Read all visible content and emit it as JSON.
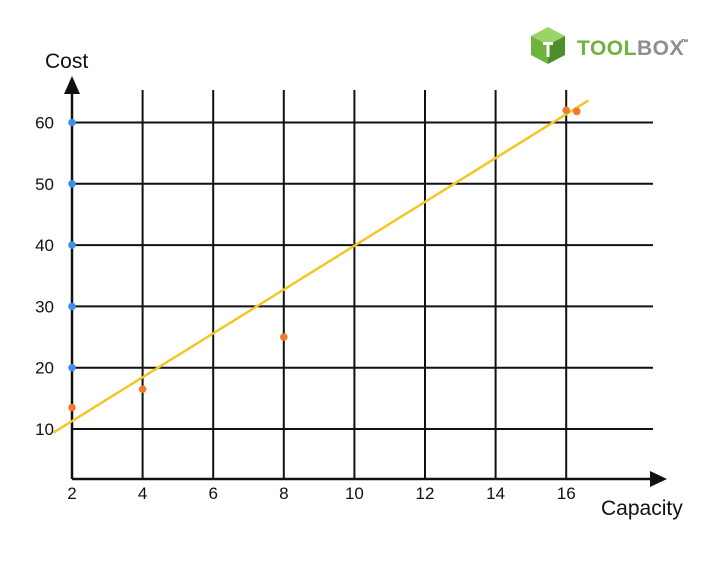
{
  "brand": {
    "name_part1": "TOOL",
    "name_part2": "BOX",
    "trademark": "™",
    "color_green": "#6cb33f",
    "color_gray": "#8a8f96",
    "icon": "cube-icon"
  },
  "chart_data": {
    "type": "scatter",
    "xlabel": "Capacity",
    "ylabel": "Cost",
    "x_ticks": [
      2,
      4,
      6,
      8,
      10,
      12,
      14,
      16
    ],
    "y_ticks": [
      10,
      20,
      30,
      40,
      50,
      60
    ],
    "xlim": [
      2,
      18
    ],
    "ylim": [
      10,
      60
    ],
    "grid": true,
    "series": [
      {
        "color": "#3d8ef0",
        "points": [
          [
            2,
            60
          ],
          [
            2,
            50
          ],
          [
            2,
            40
          ],
          [
            2,
            30
          ],
          [
            2,
            20
          ]
        ]
      },
      {
        "color": "#f07a2a",
        "points": [
          [
            2,
            13.5
          ],
          [
            4,
            16.5
          ],
          [
            8,
            25
          ],
          [
            16,
            62
          ],
          [
            16.3,
            61.8
          ]
        ]
      }
    ],
    "trendline": {
      "color": "#f2c623",
      "start": [
        1.5,
        9.5
      ],
      "end": [
        16.6,
        63.5
      ]
    },
    "axis_color": "#111111"
  }
}
